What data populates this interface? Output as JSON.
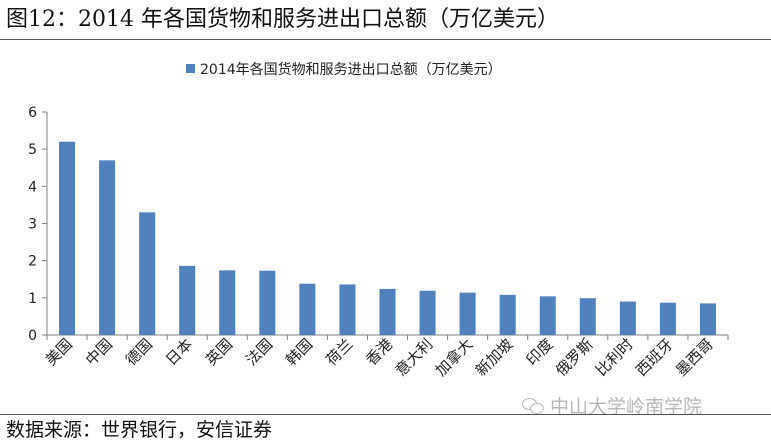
{
  "figure": {
    "title": "图12：2014 年各国货物和服务进出口总额（万亿美元）",
    "source": "数据来源：世界银行，安信证券",
    "watermark": "中山大学岭南学院"
  },
  "colors": {
    "bar": "#4f81bd",
    "axis": "#7f7f7f"
  },
  "chart_data": {
    "type": "bar",
    "title": "",
    "xlabel": "",
    "ylabel": "",
    "legend_position": "top",
    "grid": false,
    "ylim": [
      0,
      6
    ],
    "yticks": [
      0,
      1,
      2,
      3,
      4,
      5,
      6
    ],
    "categories": [
      "美国",
      "中国",
      "德国",
      "日本",
      "英国",
      "法国",
      "韩国",
      "荷兰",
      "香港",
      "意大利",
      "加拿大",
      "新加坡",
      "印度",
      "俄罗斯",
      "比利时",
      "西班牙",
      "墨西哥"
    ],
    "series": [
      {
        "name": "2014年各国货物和服务进出口总额（万亿美元）",
        "values": [
          5.2,
          4.7,
          3.3,
          1.86,
          1.74,
          1.73,
          1.38,
          1.36,
          1.24,
          1.19,
          1.14,
          1.08,
          1.04,
          0.99,
          0.9,
          0.87,
          0.85
        ]
      }
    ]
  }
}
